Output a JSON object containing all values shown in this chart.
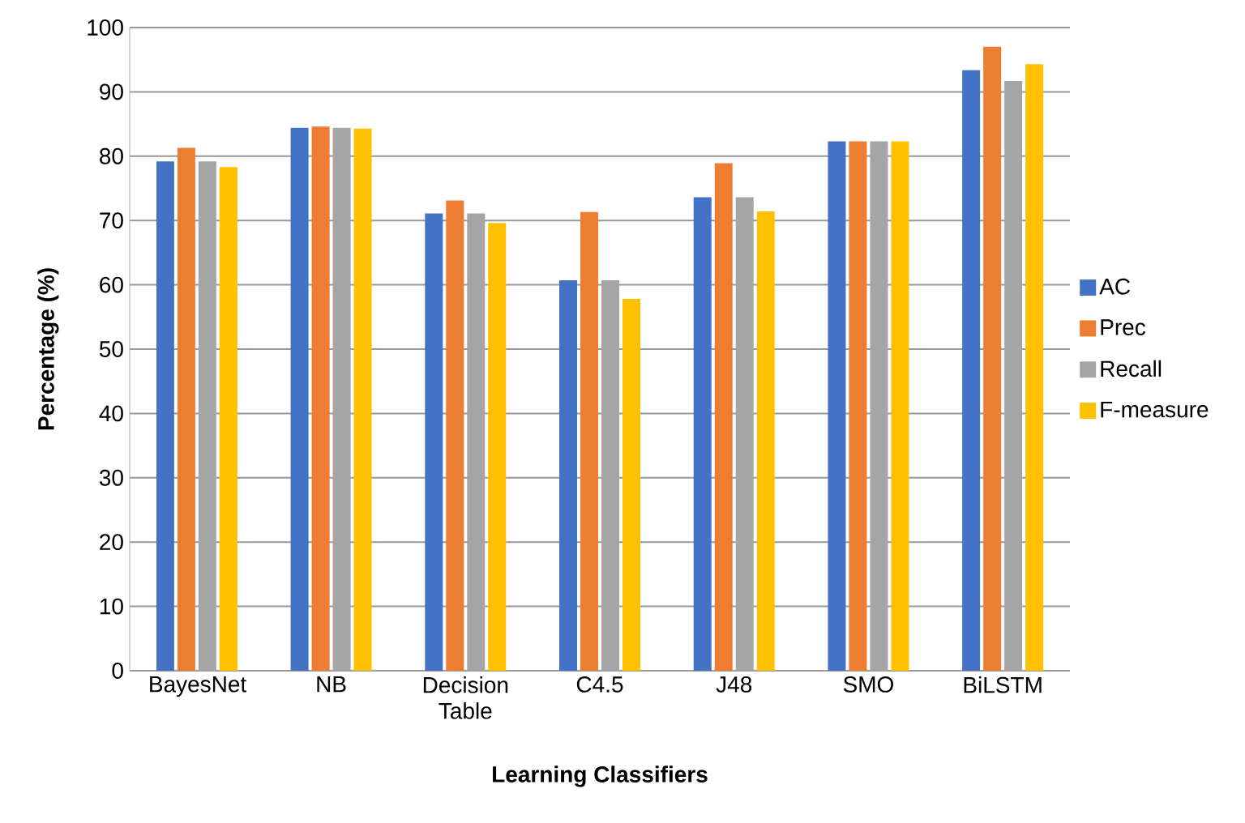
{
  "chart_data": {
    "type": "bar",
    "xlabel": "Learning Classifiers",
    "ylabel": "Percentage (%)",
    "categories": [
      "BayesNet",
      "NB",
      "Decision Table",
      "C4.5",
      "J48",
      "SMO",
      "BiLSTM"
    ],
    "series": [
      {
        "name": "AC",
        "color": "#4472c4",
        "values": [
          79.2,
          84.4,
          71.1,
          60.7,
          73.6,
          82.3,
          93.4
        ]
      },
      {
        "name": "Prec",
        "color": "#ed7d31",
        "values": [
          81.3,
          84.6,
          73.1,
          71.3,
          78.9,
          82.3,
          97.0
        ]
      },
      {
        "name": "Recall",
        "color": "#a5a5a5",
        "values": [
          79.2,
          84.4,
          71.1,
          60.7,
          73.6,
          82.3,
          91.7
        ]
      },
      {
        "name": "F-measure",
        "color": "#ffc000",
        "values": [
          78.3,
          84.3,
          69.6,
          57.8,
          71.4,
          82.3,
          94.3
        ]
      }
    ],
    "ylim": [
      0,
      100
    ],
    "yticks": [
      0,
      10,
      20,
      30,
      40,
      50,
      60,
      70,
      80,
      90,
      100
    ],
    "grid": "y",
    "legend": "right"
  }
}
